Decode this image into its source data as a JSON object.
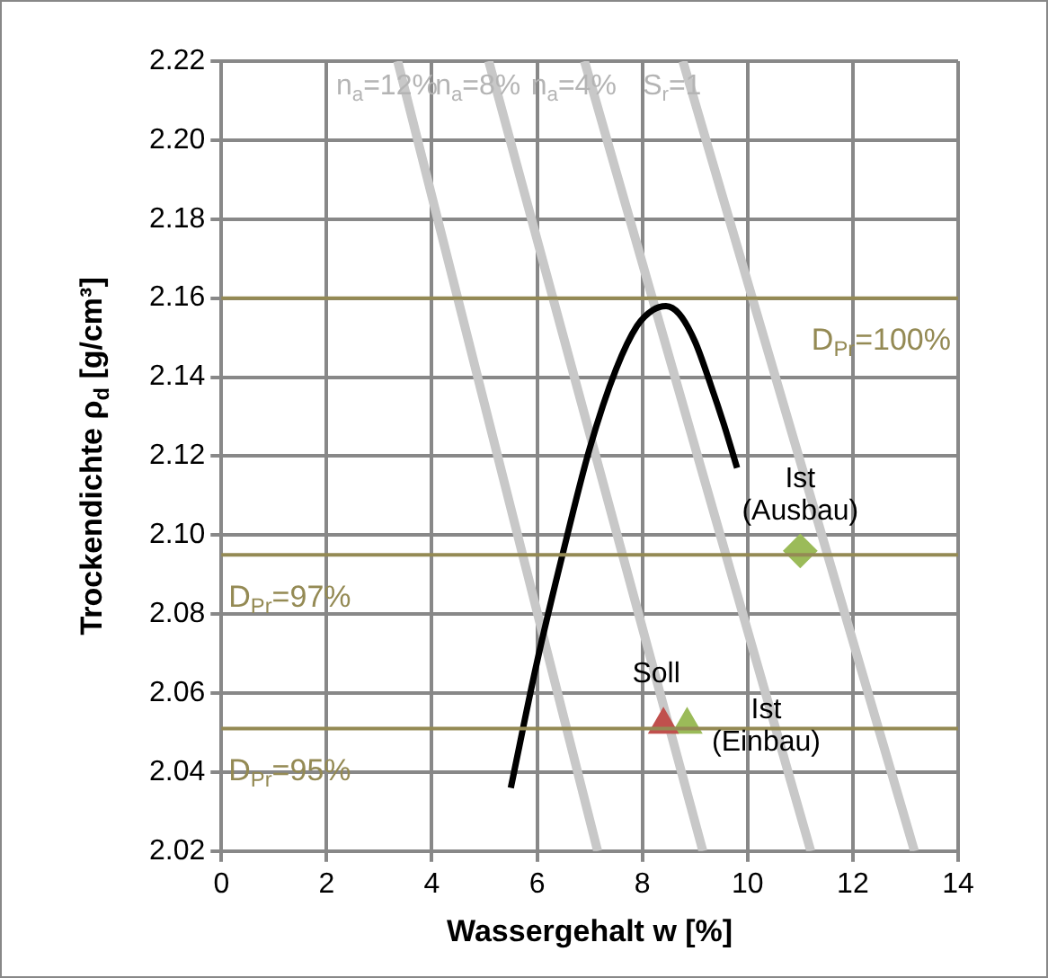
{
  "chart_data": {
    "type": "line",
    "xlabel": "Wassergehalt w [%]",
    "ylabel": "Trockendichte ρ$_{d}$ [g/cm³]",
    "xlim": [
      0,
      14
    ],
    "xticks": [
      0,
      2,
      4,
      6,
      8,
      10,
      12,
      14
    ],
    "ylim": [
      2.02,
      2.22
    ],
    "yticks": [
      {
        "value": 2.02,
        "label": "2.02"
      },
      {
        "value": 2.04,
        "label": "2.04"
      },
      {
        "value": 2.06,
        "label": "2.06"
      },
      {
        "value": 2.08,
        "label": "2.08"
      },
      {
        "value": 2.1,
        "label": "2.10"
      },
      {
        "value": 2.12,
        "label": "2.12"
      },
      {
        "value": 2.14,
        "label": "2.14"
      },
      {
        "value": 2.16,
        "label": "2.16"
      },
      {
        "value": 2.18,
        "label": "2.18"
      },
      {
        "value": 2.2,
        "label": "2.20"
      },
      {
        "value": 2.22,
        "label": "2.22"
      }
    ],
    "grid": true,
    "legend": false,
    "series": [
      {
        "name": "n$_{a}$=12%",
        "color": "#c8c8c8",
        "x": [
          3.35,
          7.15
        ],
        "values": [
          2.22,
          2.02
        ],
        "marker": "none"
      },
      {
        "name": "n$_{a}$=8%",
        "color": "#c8c8c8",
        "x": [
          5.08,
          9.15
        ],
        "values": [
          2.22,
          2.02
        ],
        "marker": "none"
      },
      {
        "name": "n$_{a}$=4%",
        "color": "#c8c8c8",
        "x": [
          6.9,
          11.2
        ],
        "values": [
          2.22,
          2.02
        ],
        "marker": "none"
      },
      {
        "name": "S$_{r}$=1",
        "color": "#c8c8c8",
        "x": [
          8.77,
          13.17
        ],
        "values": [
          2.22,
          2.02
        ],
        "marker": "none"
      },
      {
        "color": "#000000",
        "x": [
          5.5,
          6.0,
          6.5,
          7.0,
          7.5,
          7.9,
          8.2,
          8.45,
          8.7,
          9.0,
          9.3,
          9.55,
          9.8
        ],
        "values": [
          2.036,
          2.068,
          2.096,
          2.122,
          2.142,
          2.153,
          2.157,
          2.158,
          2.156,
          2.149,
          2.138,
          2.128,
          2.117
        ],
        "marker": "none"
      },
      {
        "type": "scatter",
        "name": "Soll",
        "color": "#c0504d",
        "x": [
          8.4
        ],
        "values": [
          2.052
        ],
        "marker": "triangle"
      },
      {
        "type": "scatter",
        "name": "Ist (Einbau)",
        "color": "#9bbb59",
        "x": [
          8.85
        ],
        "values": [
          2.052
        ],
        "marker": "triangle"
      },
      {
        "type": "scatter",
        "name": "Ist (Ausbau)",
        "color": "#9bbb59",
        "x": [
          11.0
        ],
        "values": [
          2.096
        ],
        "marker": "diamond"
      }
    ],
    "ref_lines": [
      {
        "axis": "y",
        "value": 2.16,
        "color": "#948a54"
      },
      {
        "axis": "y",
        "value": 2.095,
        "color": "#948a54"
      },
      {
        "axis": "y",
        "value": 2.051,
        "color": "#948a54"
      }
    ],
    "annotations": [
      {
        "text": "D$_{Pr}$=100%",
        "y": 2.16
      },
      {
        "text": "D$_{Pr}$=97%",
        "y": 2.095
      },
      {
        "text": "D$_{Pr}$=95%",
        "y": 2.051
      }
    ]
  }
}
